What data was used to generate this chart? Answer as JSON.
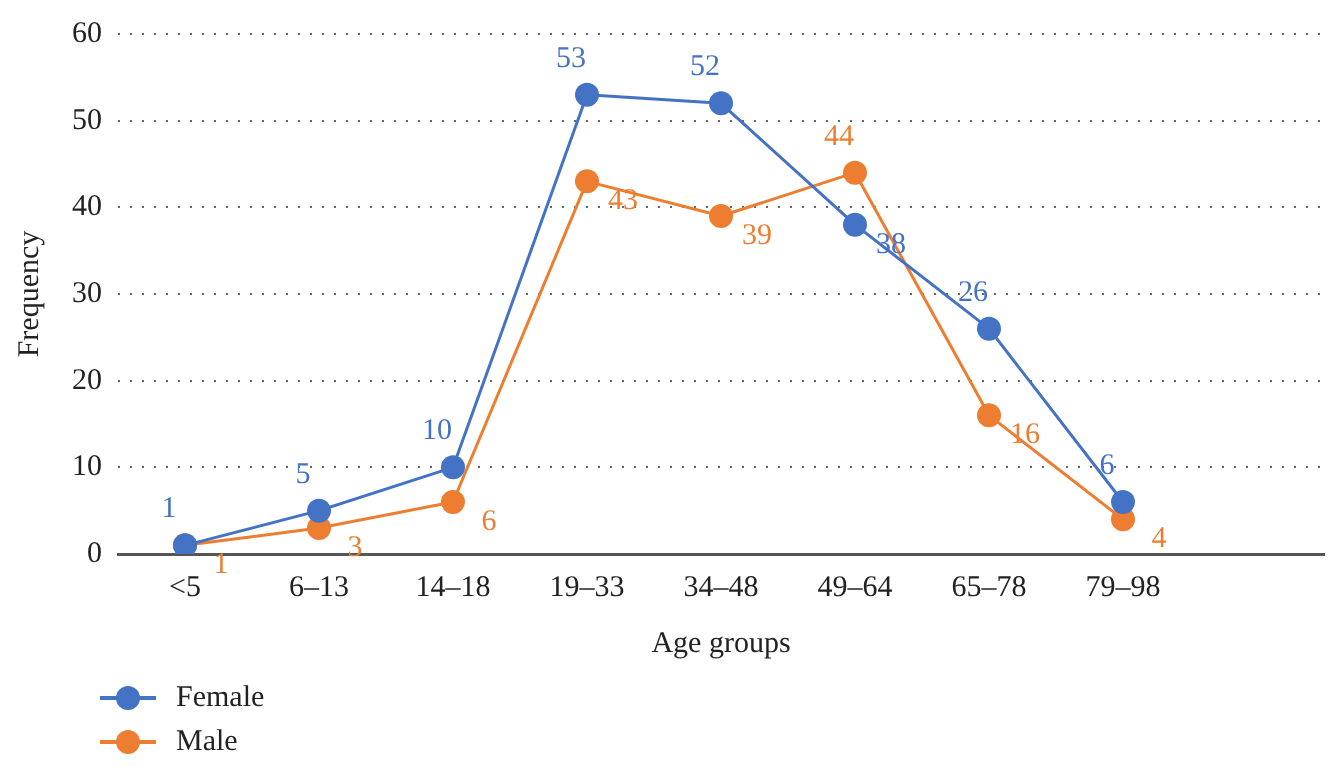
{
  "chart_data": {
    "type": "line",
    "xlabel": "Age groups",
    "ylabel": "Frequency",
    "categories": [
      "<5",
      "6–13",
      "14–18",
      "19–33",
      "34–48",
      "49–64",
      "65–78",
      "79–98",
      null
    ],
    "series": [
      {
        "name": "Female",
        "color": "#4472c4",
        "values": [
          1,
          5,
          10,
          53,
          52,
          38,
          26,
          6,
          null
        ]
      },
      {
        "name": "Male",
        "color": "#ed7d31",
        "values": [
          1,
          3,
          6,
          43,
          39,
          44,
          16,
          4,
          null
        ]
      }
    ],
    "ylim": [
      0,
      60
    ],
    "yticks": [
      0,
      10,
      20,
      30,
      40,
      50,
      60
    ],
    "grid": "y",
    "legend": "bottom left",
    "marker": "circle",
    "line_style": "solid",
    "data_labels": true
  }
}
